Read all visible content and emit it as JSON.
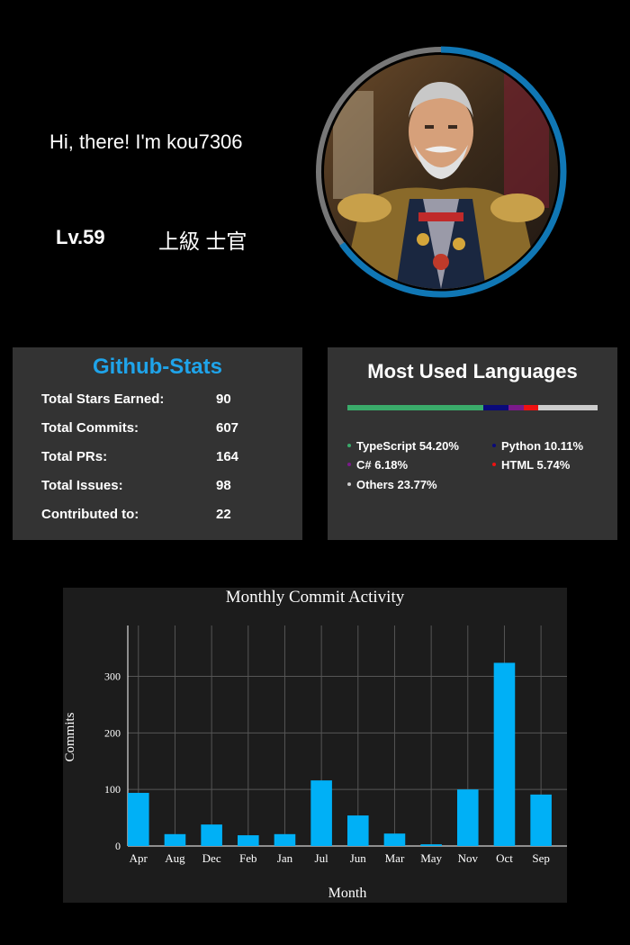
{
  "profile": {
    "greeting": "Hi, there! I'm kou7306",
    "level": "Lv.59",
    "rank": "上級 士官",
    "avatar_alt": "avatar"
  },
  "stats": {
    "title": "Github-Stats",
    "items": [
      {
        "label": "Total Stars Earned:",
        "value": "90"
      },
      {
        "label": "Total Commits:",
        "value": "607"
      },
      {
        "label": "Total PRs:",
        "value": "164"
      },
      {
        "label": "Total Issues:",
        "value": "98"
      },
      {
        "label": "Contributed to:",
        "value": "22"
      }
    ]
  },
  "languages": {
    "title": "Most Used Languages",
    "items": [
      {
        "name": "TypeScript",
        "percent": 54.2,
        "label": "TypeScript 54.20%",
        "color": "#3aab6a"
      },
      {
        "name": "Python",
        "percent": 10.11,
        "label": "Python 10.11%",
        "color": "#0a0a7a"
      },
      {
        "name": "C#",
        "percent": 6.18,
        "label": "C# 6.18%",
        "color": "#7a1a8a"
      },
      {
        "name": "HTML",
        "percent": 5.74,
        "label": "HTML 5.74%",
        "color": "#ee1111"
      },
      {
        "name": "Others",
        "percent": 23.77,
        "label": "Others 23.77%",
        "color": "#cccccc"
      }
    ]
  },
  "chart_data": {
    "type": "bar",
    "title": "Monthly Commit Activity",
    "xlabel": "Month",
    "ylabel": "Commits",
    "categories": [
      "Apr",
      "Aug",
      "Dec",
      "Feb",
      "Jan",
      "Jul",
      "Jun",
      "Mar",
      "May",
      "Nov",
      "Oct",
      "Sep"
    ],
    "values": [
      94,
      21,
      38,
      19,
      21,
      116,
      54,
      22,
      3,
      100,
      324,
      91
    ],
    "ylim": [
      0,
      390
    ],
    "yticks": [
      0,
      100,
      200,
      300
    ],
    "grid": true,
    "bar_color": "#00b0f6"
  }
}
